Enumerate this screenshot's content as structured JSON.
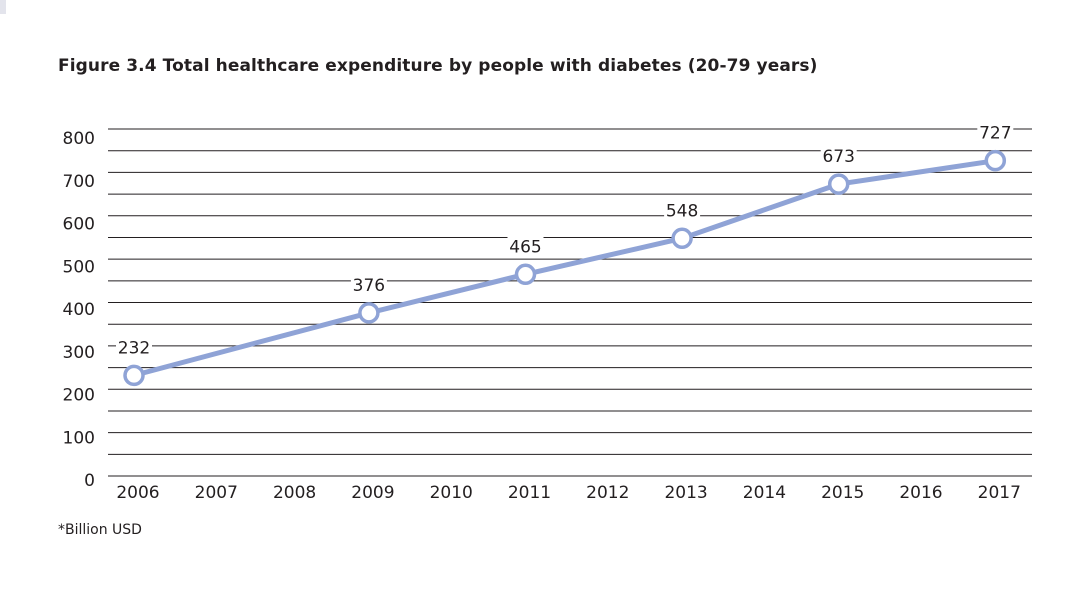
{
  "chart_data": {
    "type": "line",
    "title": "Figure 3.4 Total healthcare expenditure by people with diabetes (20-79 years)",
    "xlabel": "",
    "ylabel": "",
    "footnote": "*Billion USD",
    "categories": [
      "2006",
      "2007",
      "2008",
      "2009",
      "2010",
      "2011",
      "2012",
      "2013",
      "2014",
      "2015",
      "2016",
      "2017"
    ],
    "y_ticks": [
      "0",
      "100",
      "200",
      "300",
      "400",
      "500",
      "600",
      "700",
      "800"
    ],
    "ylim": [
      0,
      800
    ],
    "grid": true,
    "legend": "none",
    "series": [
      {
        "points": [
          {
            "x": "2006",
            "y": 232,
            "label": "232"
          },
          {
            "x": "2009",
            "y": 376,
            "label": "376"
          },
          {
            "x": "2011",
            "y": 465,
            "label": "465"
          },
          {
            "x": "2013",
            "y": 548,
            "label": "548"
          },
          {
            "x": "2015",
            "y": 673,
            "label": "673"
          },
          {
            "x": "2017",
            "y": 727,
            "label": "727"
          }
        ]
      }
    ],
    "colors": {
      "line": "#8fa3d6",
      "grid": "#231f20",
      "marker_fill": "#ffffff"
    }
  }
}
